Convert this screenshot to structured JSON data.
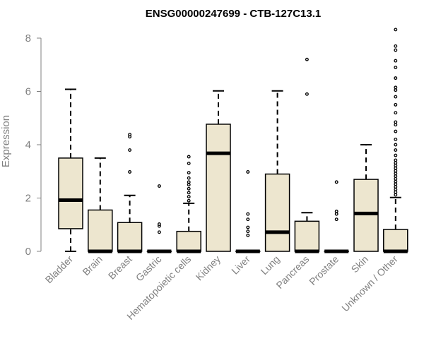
{
  "chart_data": {
    "type": "boxplot",
    "title": "ENSG00000247699 - CTB-127C13.1",
    "xlabel": "",
    "ylabel": "Expression",
    "ylim": [
      0,
      8.3
    ],
    "yticks": [
      0,
      2,
      4,
      6,
      8
    ],
    "grid": false,
    "box_fill": "#ede6cf",
    "box_stroke": "#000000",
    "axis_color": "#808080",
    "categories": [
      "Bladder",
      "Brain",
      "Breast",
      "Gastric",
      "Hematopoietic cells",
      "Kidney",
      "Liver",
      "Lung",
      "Pancreas",
      "Prostate",
      "Skin",
      "Unknown / Other"
    ],
    "boxes": [
      {
        "name": "Bladder",
        "lower_whisker": 0,
        "q1": 0.85,
        "median": 1.92,
        "q3": 3.5,
        "upper_whisker": 6.08,
        "outliers": []
      },
      {
        "name": "Brain",
        "lower_whisker": 0,
        "q1": 0,
        "median": 0,
        "q3": 1.55,
        "upper_whisker": 3.5,
        "outliers": []
      },
      {
        "name": "Breast",
        "lower_whisker": 0,
        "q1": 0,
        "median": 0,
        "q3": 1.08,
        "upper_whisker": 2.1,
        "outliers": [
          2.98,
          3.8,
          4.3,
          4.38
        ]
      },
      {
        "name": "Gastric",
        "lower_whisker": 0,
        "q1": 0,
        "median": 0,
        "q3": 0,
        "upper_whisker": 0,
        "outliers": [
          0.72,
          0.95,
          1.02,
          2.45
        ]
      },
      {
        "name": "Hematopoietic cells",
        "lower_whisker": 0,
        "q1": 0,
        "median": 0,
        "q3": 0.75,
        "upper_whisker": 1.8,
        "outliers": [
          1.9,
          2.05,
          2.2,
          2.35,
          2.5,
          2.6,
          2.75,
          2.95,
          3.3,
          3.55
        ]
      },
      {
        "name": "Kidney",
        "lower_whisker": 0,
        "q1": 0,
        "median": 3.68,
        "q3": 4.77,
        "upper_whisker": 6.02,
        "outliers": []
      },
      {
        "name": "Liver",
        "lower_whisker": 0,
        "q1": 0,
        "median": 0,
        "q3": 0,
        "upper_whisker": 0,
        "outliers": [
          0.6,
          0.75,
          0.9,
          1.2,
          1.4,
          2.98
        ]
      },
      {
        "name": "Lung",
        "lower_whisker": 0,
        "q1": 0,
        "median": 0.72,
        "q3": 2.9,
        "upper_whisker": 6.02,
        "outliers": []
      },
      {
        "name": "Pancreas",
        "lower_whisker": 0,
        "q1": 0,
        "median": 0,
        "q3": 1.13,
        "upper_whisker": 1.45,
        "outliers": [
          5.9,
          7.2
        ]
      },
      {
        "name": "Prostate",
        "lower_whisker": 0,
        "q1": 0,
        "median": 0,
        "q3": 0,
        "upper_whisker": 0,
        "outliers": [
          1.2,
          1.4,
          1.5,
          2.6
        ]
      },
      {
        "name": "Skin",
        "lower_whisker": 0,
        "q1": 0,
        "median": 1.42,
        "q3": 2.7,
        "upper_whisker": 4.0,
        "outliers": []
      },
      {
        "name": "Unknown / Other",
        "lower_whisker": 0,
        "q1": 0,
        "median": 0,
        "q3": 0.82,
        "upper_whisker": 2.02,
        "outliers": [
          2.12,
          2.22,
          2.32,
          2.42,
          2.52,
          2.62,
          2.72,
          2.82,
          2.92,
          3.02,
          3.12,
          3.22,
          3.32,
          3.42,
          3.6,
          3.8,
          4.0,
          4.2,
          4.5,
          4.75,
          4.85,
          5.2,
          5.5,
          5.8,
          6.05,
          6.15,
          6.5,
          6.9,
          7.15,
          7.55,
          7.7,
          8.32
        ]
      }
    ]
  }
}
